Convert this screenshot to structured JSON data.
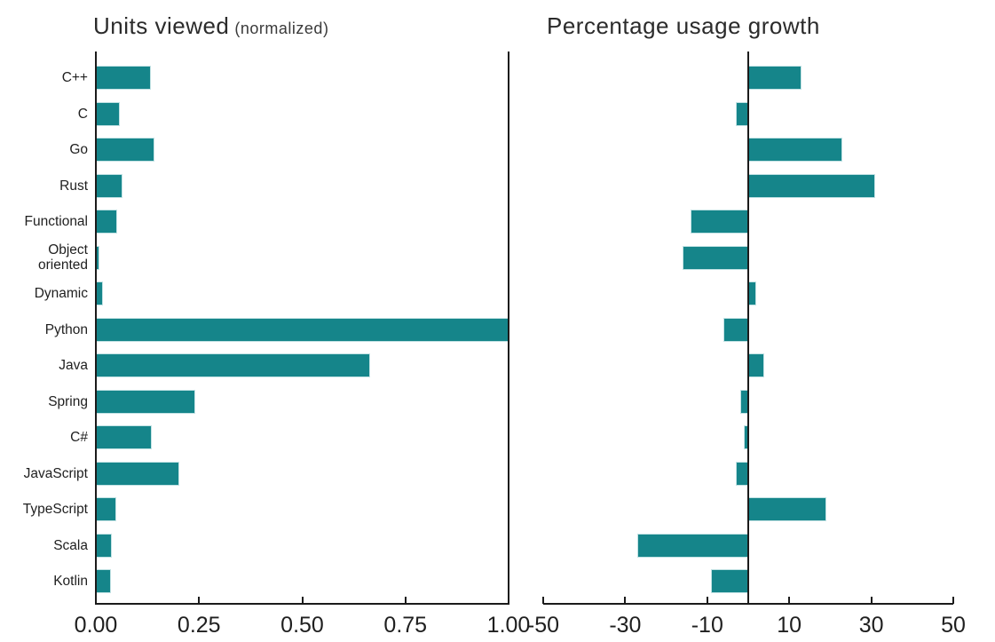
{
  "figure": {
    "background": "#ffffff",
    "bar_color": "#15858a",
    "bar_edge_color": "#c2e2e4",
    "axis_color": "#1b1b1b",
    "text_color": "#1f1f1f"
  },
  "chart_data": [
    {
      "type": "bar",
      "orientation": "horizontal",
      "title": "Units viewed",
      "title_suffix": "(normalized)",
      "categories": [
        "C++",
        "C",
        "Go",
        "Rust",
        "Functional",
        "Object oriented",
        "Dynamic",
        "Python",
        "Java",
        "Spring",
        "C#",
        "JavaScript",
        "TypeScript",
        "Scala",
        "Kotlin"
      ],
      "values": [
        0.133,
        0.058,
        0.141,
        0.065,
        0.052,
        0.008,
        0.017,
        1.0,
        0.665,
        0.24,
        0.135,
        0.203,
        0.05,
        0.038,
        0.036
      ],
      "xlim": [
        0,
        1
      ],
      "xticks": [
        0,
        0.25,
        0.5,
        0.75,
        1
      ],
      "xtick_labels": [
        "0.00",
        "0.25",
        "0.50",
        "0.75",
        "1.00"
      ],
      "grid": "off",
      "legend": "none"
    },
    {
      "type": "bar",
      "orientation": "horizontal",
      "title": "Percentage usage growth",
      "categories": [
        "C++",
        "C",
        "Go",
        "Rust",
        "Functional",
        "Object oriented",
        "Dynamic",
        "Python",
        "Java",
        "Spring",
        "C#",
        "JavaScript",
        "TypeScript",
        "Scala",
        "Kotlin"
      ],
      "values": [
        13,
        -3,
        23,
        31,
        -14,
        -16,
        2,
        -6,
        4,
        -2,
        -1,
        -3,
        19,
        -27,
        -9
      ],
      "xlim": [
        -50,
        50
      ],
      "xticks": [
        -50,
        -30,
        -10,
        10,
        30,
        50
      ],
      "xtick_labels": [
        "-50",
        "-30",
        "-10",
        "10",
        "30",
        "50"
      ],
      "grid": "off",
      "legend": "none"
    }
  ]
}
